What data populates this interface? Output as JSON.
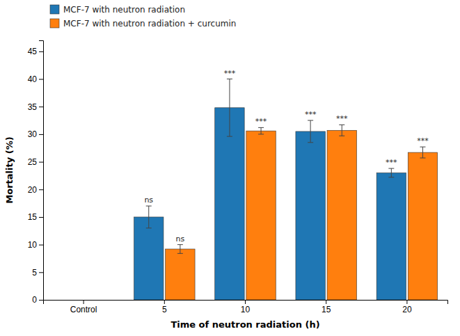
{
  "chart_data": {
    "type": "bar",
    "categories": [
      "Control",
      "5",
      "10",
      "15",
      "20"
    ],
    "series": [
      {
        "name": "MCF-7 with neutron radiation",
        "values": [
          null,
          15.0,
          34.8,
          30.5,
          23.0
        ],
        "errors": [
          null,
          2.0,
          5.2,
          2.0,
          0.8
        ],
        "annotations": [
          null,
          "ns",
          "***",
          "***",
          "***"
        ]
      },
      {
        "name": "MCF-7 with neutron radiation + curcumin",
        "values": [
          null,
          9.2,
          30.6,
          30.7,
          26.7
        ],
        "errors": [
          null,
          0.8,
          0.6,
          1.0,
          1.0
        ],
        "annotations": [
          null,
          "ns",
          "***",
          "***",
          "***"
        ]
      }
    ],
    "xlabel": "Time of neutron radiation (h)",
    "ylabel": "Mortality (%)",
    "ylim": [
      0,
      47
    ],
    "yticks": [
      0,
      5,
      10,
      15,
      20,
      25,
      30,
      35,
      40,
      45
    ],
    "grid": false,
    "legend": "upper left"
  }
}
